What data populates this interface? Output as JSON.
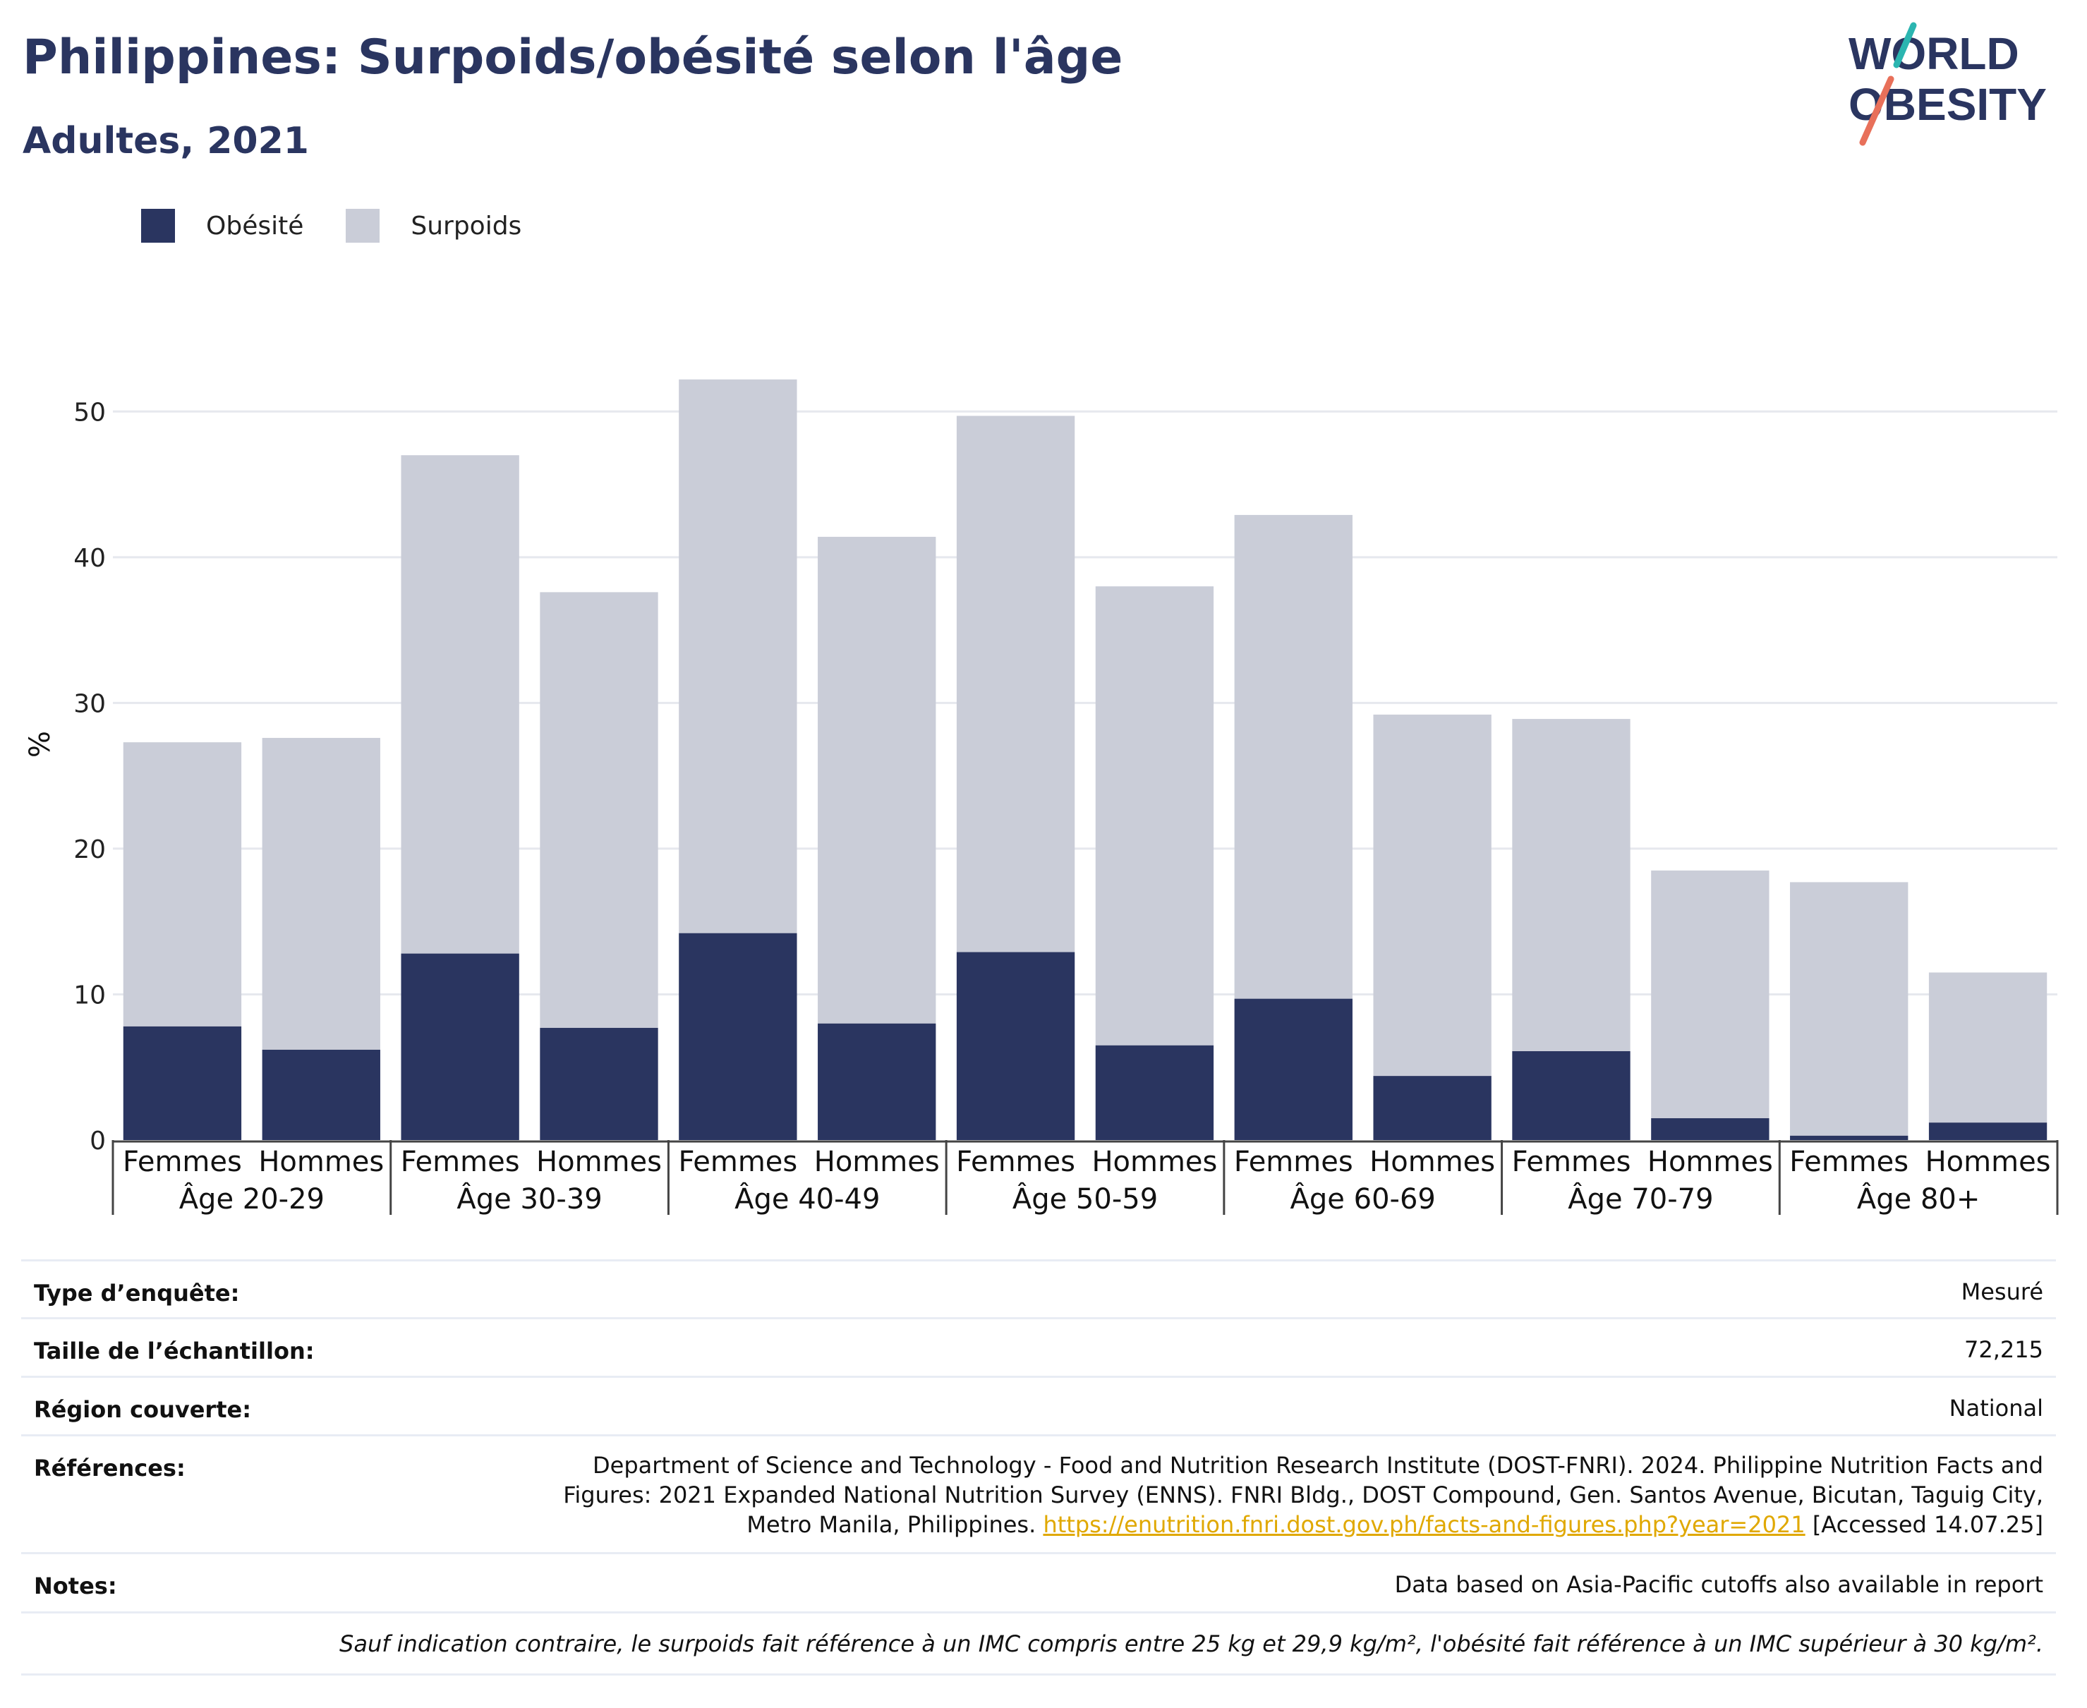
{
  "header": {
    "title": "Philippines: Surpoids/obésité selon l'âge",
    "subtitle": "Adultes, 2021",
    "logo_line1": "WORLD",
    "logo_line2": "OBESITY"
  },
  "legend": {
    "obesity_label": "Obésité",
    "overweight_label": "Surpoids"
  },
  "chart_data": {
    "type": "bar",
    "stacked": true,
    "ylabel": "%",
    "ylim": [
      0,
      55
    ],
    "yticks": [
      0,
      10,
      20,
      30,
      40,
      50
    ],
    "grid": true,
    "legend_position": "top-left",
    "groups": [
      "Âge 20-29",
      "Âge 30-39",
      "Âge 40-49",
      "Âge 50-59",
      "Âge 60-69",
      "Âge 70-79",
      "Âge 80+"
    ],
    "subcategories": [
      "Femmes",
      "Hommes"
    ],
    "series": [
      {
        "name": "Obésité",
        "color": "#2a3560",
        "values": [
          7.8,
          6.2,
          12.8,
          7.7,
          14.2,
          8.0,
          12.9,
          6.5,
          9.7,
          4.4,
          6.1,
          1.5,
          0.3,
          1.2
        ]
      },
      {
        "name": "Surpoids",
        "color": "#cacdd8",
        "values": [
          19.5,
          21.4,
          34.2,
          29.9,
          38.0,
          33.4,
          36.8,
          31.5,
          33.2,
          24.8,
          22.8,
          17.0,
          17.4,
          10.3
        ]
      }
    ]
  },
  "meta": {
    "survey_type_label": "Type d’enquête:",
    "survey_type_value": "Mesuré",
    "sample_size_label": "Taille de l’échantillon:",
    "sample_size_value": "72,215",
    "region_label": "Région couverte:",
    "region_value": "National",
    "references_label": "Références:",
    "references_line1": "Department of Science and Technology - Food and Nutrition Research Institute (DOST-FNRI). 2024. Philippine Nutrition Facts and",
    "references_line2": "Figures: 2021 Expanded National Nutrition Survey (ENNS). FNRI Bldg., DOST Compound, Gen. Santos Avenue, Bicutan, Taguig City,",
    "references_line3_prefix": "Metro Manila, Philippines.",
    "references_link": "https://enutrition.fnri.dost.gov.ph/facts-and-figures.php?year=2021",
    "references_line3_suffix": "[Accessed 14.07.25]",
    "notes_label": "Notes:",
    "notes_value": "Data based on Asia-Pacific cutoffs also available in report",
    "footnote": "Sauf indication contraire, le surpoids fait référence à un IMC compris entre 25 kg et 29,9 kg/m², l'obésité fait référence à un IMC supérieur à 30 kg/m²."
  },
  "colors": {
    "brand_navy": "#2a3560",
    "overweight_grey": "#cacdd8",
    "logo_teal": "#2bb5b0",
    "logo_coral": "#e8705a",
    "link": "#e0a800"
  }
}
